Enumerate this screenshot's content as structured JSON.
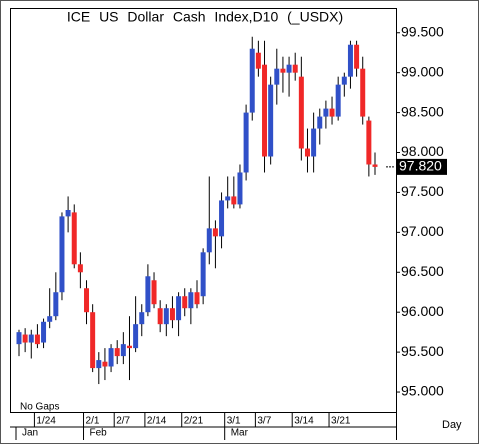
{
  "chart_data": {
    "type": "candlestick",
    "title": "ICE US Dollar Cash Index,D10 (_USDX)",
    "note": "No Gaps",
    "x_unit": "Day",
    "categories": [
      null,
      null,
      null,
      "1/24",
      null,
      null,
      null,
      null,
      null,
      null,
      null,
      "2/1",
      null,
      null,
      null,
      null,
      "2/7",
      null,
      null,
      null,
      null,
      "2/14",
      null,
      null,
      null,
      null,
      null,
      "2/21",
      null,
      null,
      null,
      null,
      null,
      null,
      "3/1",
      null,
      null,
      null,
      null,
      "3/7",
      null,
      null,
      null,
      null,
      null,
      "3/14",
      null,
      null,
      null,
      null,
      null,
      "3/21",
      null,
      null,
      null,
      null,
      null,
      null,
      null
    ],
    "months": [
      "Jan",
      null,
      null,
      null,
      null,
      null,
      null,
      null,
      null,
      null,
      null,
      "Feb",
      null,
      null,
      null,
      null,
      null,
      null,
      null,
      null,
      null,
      null,
      null,
      null,
      null,
      null,
      null,
      null,
      null,
      null,
      null,
      null,
      null,
      null,
      "Mar",
      null,
      null,
      null,
      null,
      null,
      null,
      null,
      null,
      null,
      null,
      null,
      null,
      null,
      null,
      null,
      null,
      null,
      null,
      null,
      null,
      null,
      null,
      null,
      null
    ],
    "open": [
      95.6,
      95.72,
      95.62,
      95.72,
      95.62,
      95.88,
      95.95,
      96.25,
      97.2,
      97.25,
      96.6,
      96.3,
      96.0,
      95.3,
      95.38,
      95.32,
      95.55,
      95.45,
      95.58,
      95.55,
      95.85,
      96.0,
      96.4,
      96.05,
      95.85,
      96.05,
      95.9,
      96.2,
      96.05,
      96.25,
      96.2,
      96.75,
      97.05,
      96.95,
      97.4,
      97.45,
      97.35,
      97.75,
      98.5,
      99.25,
      99.1,
      97.95,
      98.85,
      99.05,
      99.0,
      99.1,
      98.95,
      98.05,
      97.95,
      98.3,
      98.45,
      98.55,
      98.45,
      98.85,
      98.95,
      99.35,
      99.05,
      98.4,
      97.85
    ],
    "high": [
      95.78,
      95.8,
      95.78,
      95.85,
      95.92,
      96.3,
      96.5,
      97.25,
      97.45,
      97.35,
      96.75,
      96.4,
      96.1,
      95.5,
      95.55,
      95.6,
      95.65,
      95.75,
      95.95,
      96.2,
      96.1,
      96.6,
      96.5,
      96.15,
      96.1,
      96.2,
      96.25,
      96.3,
      96.3,
      96.4,
      96.8,
      97.7,
      97.15,
      97.5,
      97.7,
      97.7,
      97.85,
      98.6,
      99.45,
      99.4,
      99.4,
      98.95,
      99.3,
      99.2,
      99.2,
      99.25,
      99.2,
      98.3,
      98.5,
      98.55,
      98.65,
      98.7,
      98.95,
      99.0,
      99.4,
      99.4,
      99.2,
      98.45,
      98.0
    ],
    "low": [
      95.45,
      95.5,
      95.42,
      95.55,
      95.55,
      95.8,
      95.9,
      96.15,
      97.0,
      96.55,
      96.3,
      95.85,
      95.25,
      95.1,
      95.15,
      95.25,
      95.35,
      95.35,
      95.15,
      95.5,
      95.7,
      95.95,
      96.05,
      95.75,
      95.7,
      95.8,
      95.7,
      95.95,
      95.85,
      96.05,
      96.1,
      96.6,
      96.55,
      96.8,
      97.3,
      97.3,
      97.3,
      97.65,
      98.4,
      98.95,
      97.75,
      97.85,
      98.6,
      98.75,
      98.7,
      98.9,
      97.9,
      97.75,
      97.75,
      98.1,
      98.3,
      98.35,
      98.4,
      98.7,
      98.8,
      98.95,
      98.35,
      97.7,
      97.72
    ],
    "close": [
      95.75,
      95.62,
      95.72,
      95.6,
      95.88,
      95.95,
      96.25,
      97.2,
      97.28,
      96.6,
      96.5,
      96.0,
      95.3,
      95.4,
      95.32,
      95.55,
      95.45,
      95.6,
      95.55,
      95.85,
      96.0,
      96.45,
      96.1,
      95.85,
      96.05,
      95.9,
      96.2,
      96.05,
      96.25,
      96.1,
      96.75,
      97.05,
      96.95,
      97.4,
      97.45,
      97.35,
      97.75,
      98.5,
      99.3,
      99.05,
      97.95,
      98.85,
      99.05,
      99.0,
      99.1,
      99.0,
      98.05,
      97.95,
      98.3,
      98.45,
      98.55,
      98.45,
      98.85,
      98.95,
      99.35,
      99.05,
      98.45,
      97.85,
      97.82
    ],
    "last_label": "97.820",
    "up_color": "#3050c8",
    "down_color": "#f02828",
    "ylim": [
      94.75,
      99.81
    ],
    "yticks": [
      {
        "value": 95,
        "label": "95.000"
      },
      {
        "value": 95.5,
        "label": "95.500"
      },
      {
        "value": 96,
        "label": "96.000"
      },
      {
        "value": 96.5,
        "label": "96.500"
      },
      {
        "value": 97,
        "label": "97.000"
      },
      {
        "value": 97.5,
        "label": "97.500"
      },
      {
        "value": 98,
        "label": "98.000"
      },
      {
        "value": 98.5,
        "label": "98.500"
      },
      {
        "value": 99,
        "label": "99.000"
      },
      {
        "value": 99.5,
        "label": "99.500"
      }
    ],
    "grid": false
  }
}
